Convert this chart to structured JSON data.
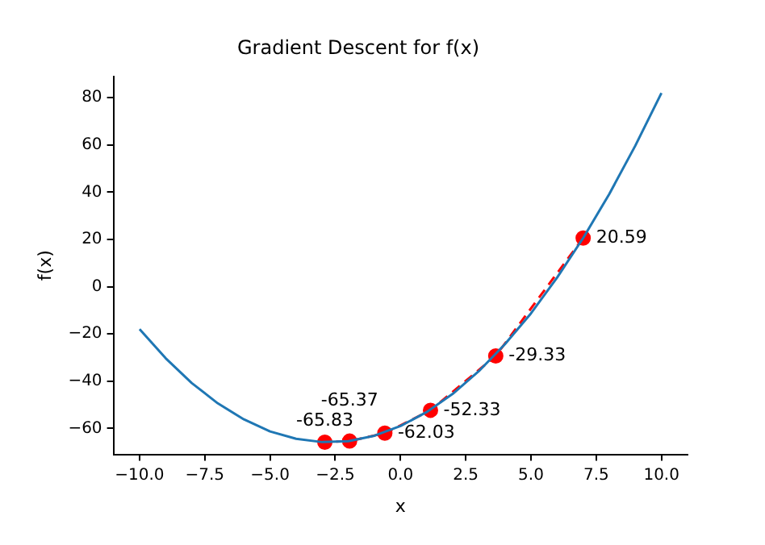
{
  "chart_data": {
    "type": "line",
    "title": "Gradient Descent for f(x)",
    "xlabel": "x",
    "ylabel": "f(x)",
    "xlim": [
      -11,
      11
    ],
    "ylim": [
      -71,
      89
    ],
    "xticks": [
      {
        "value": -10,
        "label": "−10.0"
      },
      {
        "value": -7.5,
        "label": "−7.5"
      },
      {
        "value": -5,
        "label": "−5.0"
      },
      {
        "value": -2.5,
        "label": "−2.5"
      },
      {
        "value": 0,
        "label": "0.0"
      },
      {
        "value": 2.5,
        "label": "2.5"
      },
      {
        "value": 5,
        "label": "5.0"
      },
      {
        "value": 7.5,
        "label": "7.5"
      },
      {
        "value": 10,
        "label": "10.0"
      }
    ],
    "yticks": [
      {
        "value": -60,
        "label": "−60"
      },
      {
        "value": -40,
        "label": "−40"
      },
      {
        "value": -20,
        "label": "−20"
      },
      0,
      20,
      40,
      60,
      80
    ],
    "grid": false,
    "legend": false,
    "series": [
      {
        "color": "#1f77b4",
        "marker": "none",
        "x": [
          -10,
          -9,
          -8,
          -7,
          -6,
          -5,
          -4,
          -3,
          -2,
          -1,
          0,
          1,
          2,
          3,
          4,
          5,
          6,
          7,
          8,
          9,
          10
        ],
        "values": [
          -18,
          -30.3,
          -40.8,
          -49.4,
          -56.2,
          -61.3,
          -64.4,
          -65.8,
          -65.4,
          -63.1,
          -59,
          -53.1,
          -45.4,
          -35.8,
          -24.4,
          -11.3,
          3.8,
          20.6,
          39.2,
          59.7,
          82
        ]
      },
      {
        "color": "#ff0000",
        "marker": "circle",
        "line_style": "dashed",
        "x": [
          7,
          3.65,
          1.15,
          -0.6,
          -1.95,
          -2.9
        ],
        "values": [
          20.59,
          -29.33,
          -52.33,
          -62.03,
          -65.37,
          -65.83
        ],
        "data_labels": true
      }
    ]
  }
}
